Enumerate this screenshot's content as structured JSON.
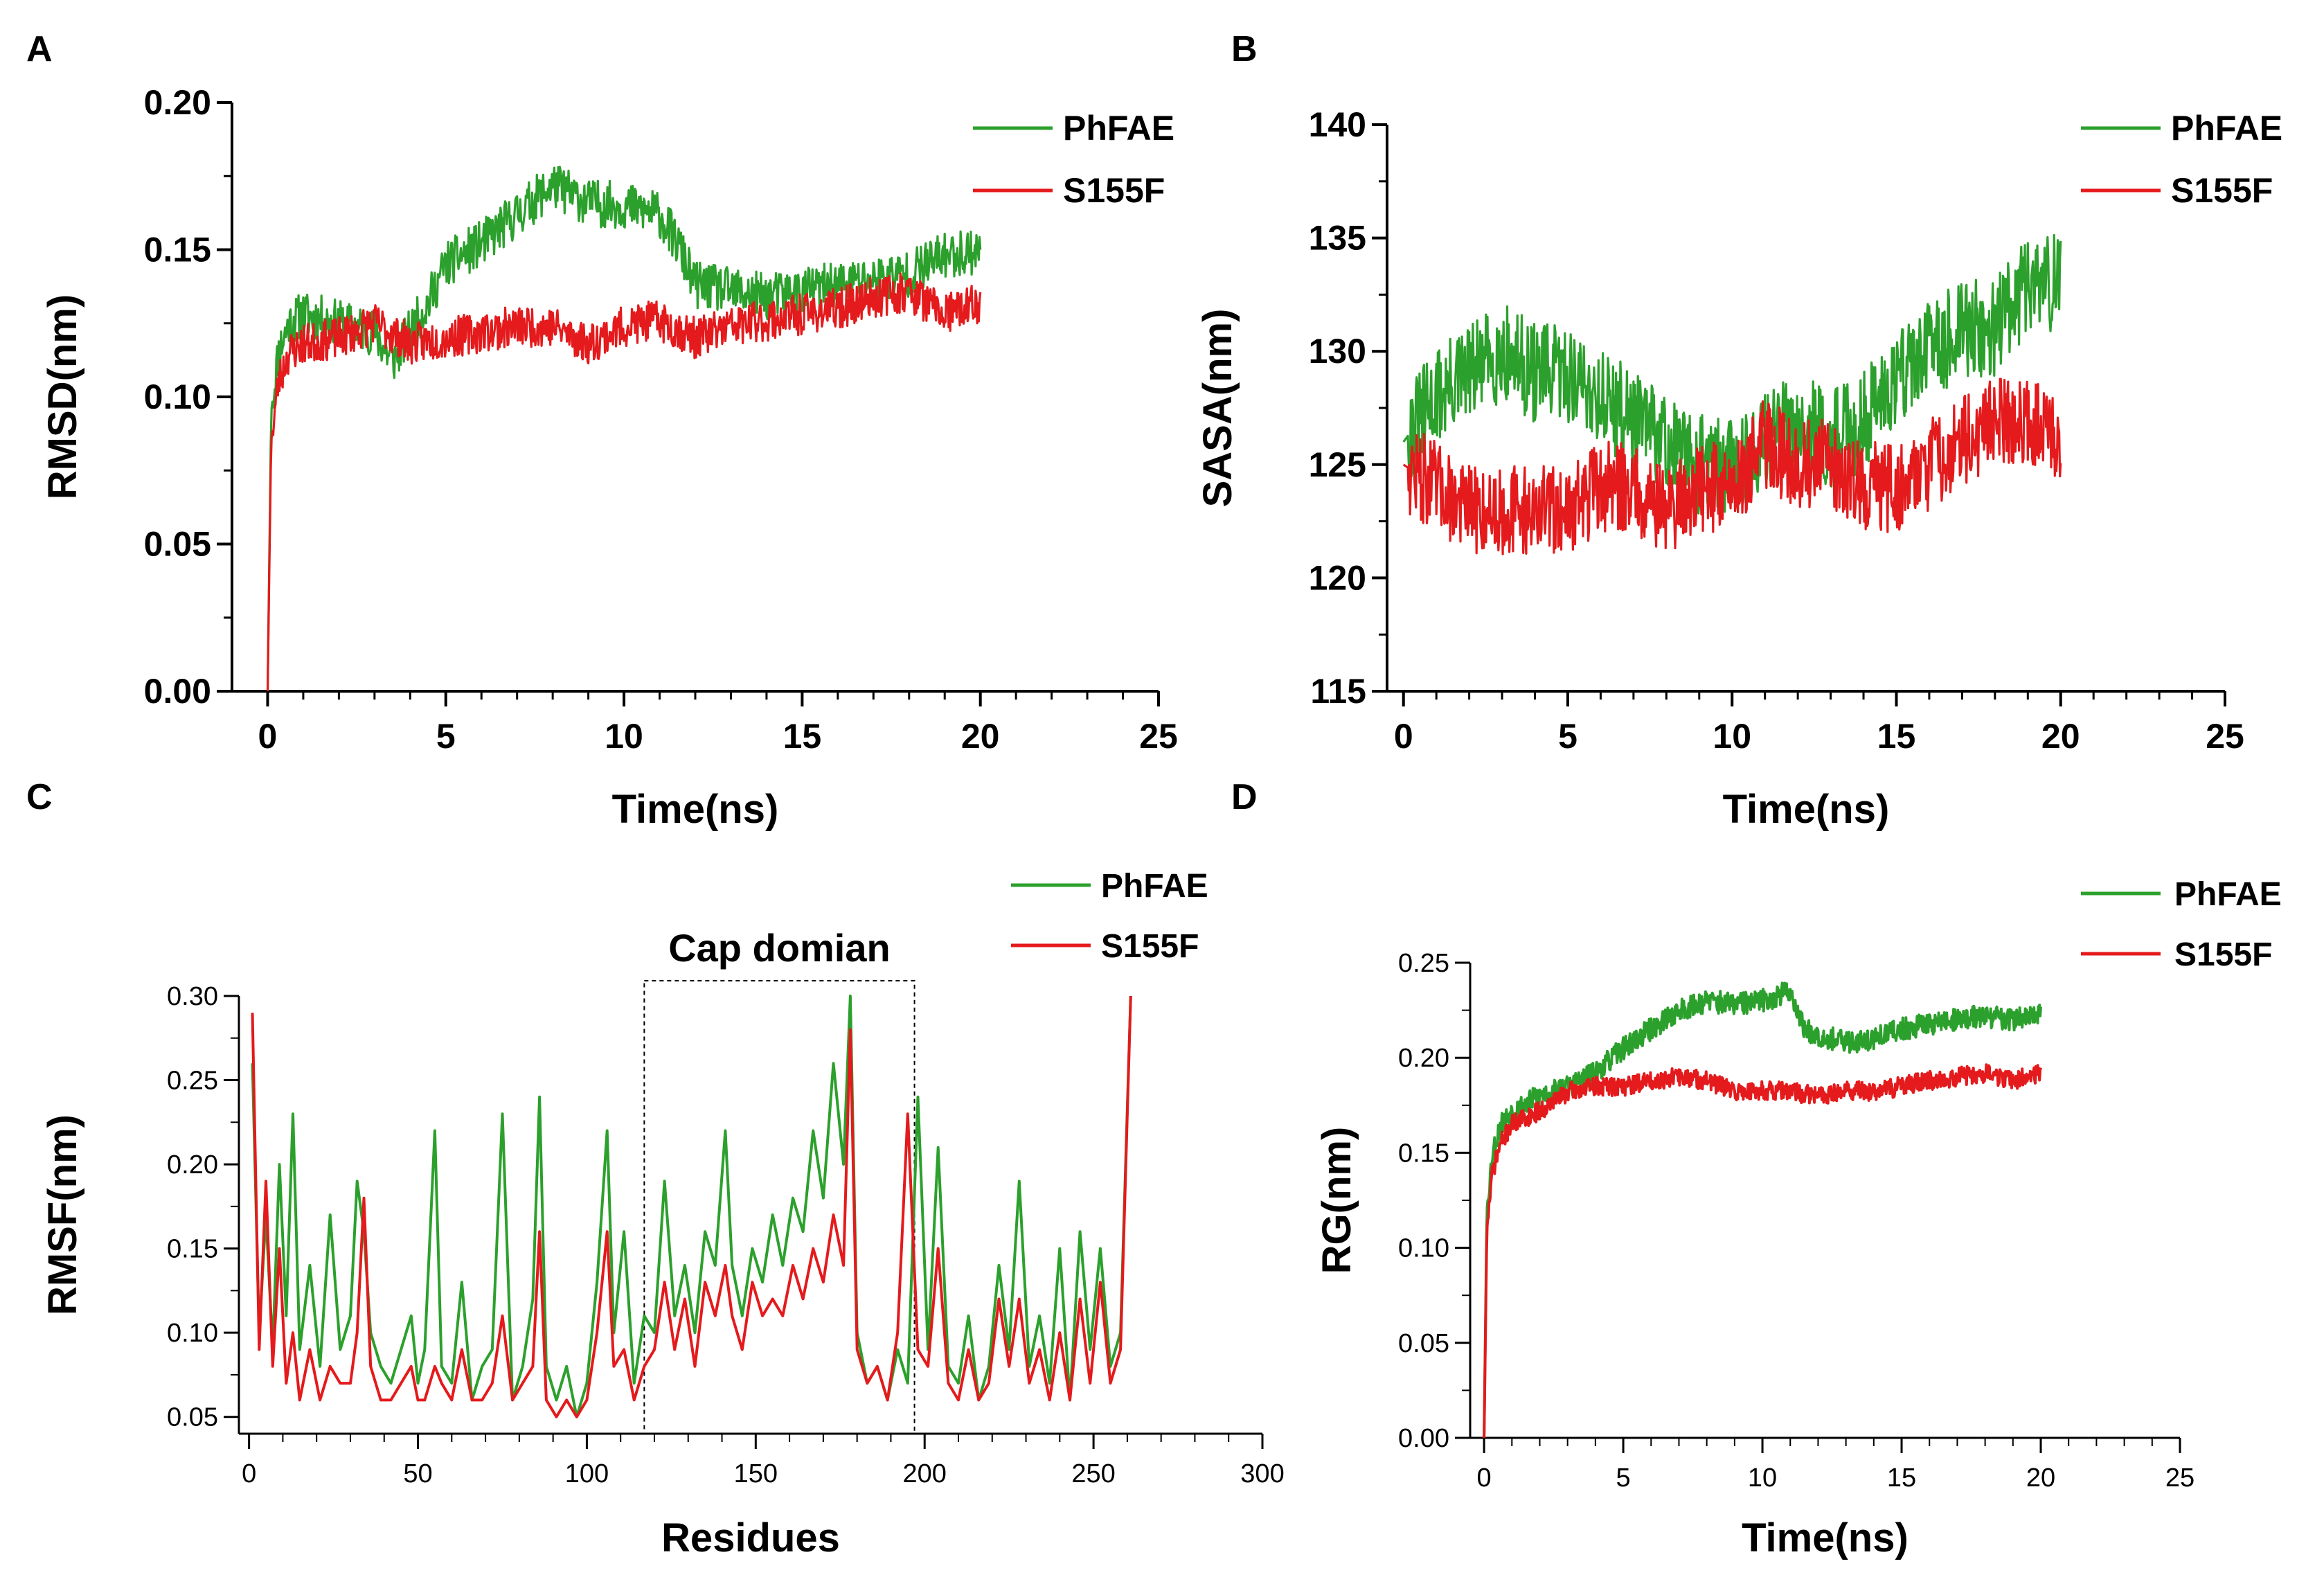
{
  "figure": {
    "colors": {
      "phfae": "#2ca02c",
      "s155f": "#e41a1c",
      "axis": "#000000"
    }
  },
  "chart_data": [
    {
      "panel": "A",
      "type": "line",
      "xlabel": "Time(ns)",
      "ylabel": "RMSD(nm)",
      "xlim": [
        -1,
        25
      ],
      "ylim": [
        0,
        0.2
      ],
      "xticks": [
        0,
        5,
        10,
        15,
        20,
        25
      ],
      "xtick_labels": [
        "0",
        "5",
        "10",
        "15",
        "20",
        "25"
      ],
      "yticks": [
        0,
        0.05,
        0.1,
        0.15,
        0.2
      ],
      "ytick_labels": [
        "0.00",
        "0.05",
        "0.10",
        "0.15",
        "0.20"
      ],
      "legend": [
        "PhFAE",
        "S155F"
      ],
      "legend_position": "top-right",
      "series": [
        {
          "name": "PhFAE",
          "color": "#2ca02c",
          "noise": 0.008,
          "seed": 11,
          "x": [
            0,
            0.1,
            0.3,
            0.6,
            1,
            2,
            3,
            3.5,
            4.5,
            5,
            6,
            7,
            8,
            9,
            10,
            11,
            11.5,
            12,
            13,
            14,
            15,
            16,
            17,
            18,
            19,
            20
          ],
          "values": [
            0,
            0.095,
            0.115,
            0.125,
            0.128,
            0.125,
            0.122,
            0.112,
            0.132,
            0.145,
            0.152,
            0.162,
            0.172,
            0.166,
            0.165,
            0.162,
            0.152,
            0.138,
            0.136,
            0.134,
            0.136,
            0.138,
            0.14,
            0.142,
            0.148,
            0.15
          ]
        },
        {
          "name": "S155F",
          "color": "#e41a1c",
          "noise": 0.007,
          "seed": 23,
          "x": [
            0,
            0.1,
            0.3,
            0.6,
            1,
            2,
            3,
            4,
            5,
            6,
            7,
            8,
            9,
            10,
            11,
            12,
            13,
            14,
            15,
            16,
            17,
            18,
            19,
            20
          ],
          "values": [
            0,
            0.085,
            0.105,
            0.115,
            0.118,
            0.12,
            0.125,
            0.118,
            0.12,
            0.122,
            0.124,
            0.124,
            0.118,
            0.124,
            0.126,
            0.12,
            0.124,
            0.126,
            0.128,
            0.13,
            0.134,
            0.136,
            0.128,
            0.132
          ]
        }
      ]
    },
    {
      "panel": "B",
      "type": "line",
      "xlabel": "Time(ns)",
      "ylabel": "SASA(nm)",
      "xlim": [
        -0.5,
        25
      ],
      "ylim": [
        115,
        140
      ],
      "xticks": [
        0,
        5,
        10,
        15,
        20,
        25
      ],
      "xtick_labels": [
        "0",
        "5",
        "10",
        "15",
        "20",
        "25"
      ],
      "yticks": [
        115,
        120,
        125,
        130,
        135,
        140
      ],
      "ytick_labels": [
        "115",
        "120",
        "125",
        "130",
        "135",
        "140"
      ],
      "legend": [
        "PhFAE",
        "S155F"
      ],
      "legend_position": "top-right",
      "series": [
        {
          "name": "PhFAE",
          "color": "#2ca02c",
          "noise": 2.2,
          "seed": 31,
          "x": [
            0,
            1,
            2,
            3,
            4,
            5,
            6,
            7,
            8,
            9,
            10,
            11,
            12,
            13,
            14,
            15,
            16,
            17,
            18,
            19,
            20
          ],
          "values": [
            126,
            128,
            129,
            130,
            129,
            129,
            128,
            127,
            126,
            125,
            125,
            126,
            127,
            126,
            127,
            129,
            130,
            131,
            131,
            133,
            133
          ]
        },
        {
          "name": "S155F",
          "color": "#e41a1c",
          "noise": 2.0,
          "seed": 47,
          "x": [
            0,
            1,
            2,
            3,
            4,
            5,
            6,
            7,
            8,
            9,
            10,
            11,
            12,
            13,
            14,
            15,
            16,
            17,
            18,
            19,
            20
          ],
          "values": [
            125,
            124,
            123,
            123,
            123,
            123,
            124,
            124,
            123,
            124,
            124,
            126,
            125,
            125,
            124,
            124,
            125,
            126,
            127,
            127,
            126
          ]
        }
      ]
    },
    {
      "panel": "C",
      "type": "line",
      "xlabel": "Residues",
      "ylabel": "RMSF(nm)",
      "xlim": [
        -3,
        300
      ],
      "ylim": [
        0.04,
        0.3
      ],
      "xticks": [
        0,
        50,
        100,
        150,
        200,
        250,
        300
      ],
      "xtick_labels": [
        "0",
        "50",
        "100",
        "150",
        "200",
        "250",
        "300"
      ],
      "yticks": [
        0.05,
        0.1,
        0.15,
        0.2,
        0.25,
        0.3
      ],
      "ytick_labels": [
        "0.05",
        "0.10",
        "0.15",
        "0.20",
        "0.25",
        "0.30"
      ],
      "annotation": {
        "text": "Cap domian",
        "x_range": [
          117,
          197
        ],
        "y_range": [
          0.04,
          0.3
        ]
      },
      "legend": [
        "PhFAE",
        "S155F"
      ],
      "legend_position": "top-right",
      "series": [
        {
          "name": "PhFAE",
          "color": "#2ca02c",
          "x": [
            1,
            3,
            5,
            7,
            9,
            11,
            13,
            15,
            18,
            21,
            24,
            27,
            30,
            32,
            34,
            36,
            39,
            42,
            45,
            48,
            50,
            52,
            55,
            57,
            60,
            63,
            66,
            69,
            72,
            75,
            78,
            81,
            84,
            86,
            88,
            91,
            94,
            97,
            100,
            103,
            106,
            108,
            111,
            114,
            117,
            120,
            123,
            126,
            129,
            132,
            135,
            138,
            141,
            143,
            146,
            149,
            152,
            155,
            158,
            161,
            164,
            167,
            170,
            173,
            176,
            178,
            180,
            183,
            186,
            189,
            192,
            195,
            198,
            201,
            204,
            207,
            210,
            213,
            216,
            219,
            222,
            225,
            228,
            231,
            234,
            237,
            240,
            243,
            246,
            249,
            252,
            255,
            258,
            261
          ],
          "values": [
            0.26,
            0.1,
            0.17,
            0.09,
            0.2,
            0.11,
            0.23,
            0.09,
            0.14,
            0.08,
            0.17,
            0.09,
            0.11,
            0.19,
            0.16,
            0.1,
            0.08,
            0.07,
            0.09,
            0.11,
            0.07,
            0.09,
            0.22,
            0.08,
            0.07,
            0.13,
            0.06,
            0.08,
            0.09,
            0.23,
            0.06,
            0.08,
            0.12,
            0.24,
            0.08,
            0.06,
            0.08,
            0.05,
            0.07,
            0.13,
            0.22,
            0.1,
            0.16,
            0.07,
            0.11,
            0.1,
            0.19,
            0.11,
            0.14,
            0.1,
            0.16,
            0.14,
            0.22,
            0.14,
            0.11,
            0.15,
            0.13,
            0.17,
            0.14,
            0.18,
            0.16,
            0.22,
            0.18,
            0.26,
            0.2,
            0.3,
            0.1,
            0.07,
            0.08,
            0.06,
            0.09,
            0.07,
            0.24,
            0.09,
            0.21,
            0.08,
            0.07,
            0.11,
            0.06,
            0.08,
            0.14,
            0.09,
            0.19,
            0.08,
            0.11,
            0.07,
            0.15,
            0.06,
            0.16,
            0.09,
            0.15,
            0.08,
            0.1,
            0.3
          ]
        },
        {
          "name": "S155F",
          "color": "#e41a1c",
          "x": [
            1,
            3,
            5,
            7,
            9,
            11,
            13,
            15,
            18,
            21,
            24,
            27,
            30,
            32,
            34,
            36,
            39,
            42,
            45,
            48,
            50,
            52,
            55,
            57,
            60,
            63,
            66,
            69,
            72,
            75,
            78,
            81,
            84,
            86,
            88,
            91,
            94,
            97,
            100,
            103,
            106,
            108,
            111,
            114,
            117,
            120,
            123,
            126,
            129,
            132,
            135,
            138,
            141,
            143,
            146,
            149,
            152,
            155,
            158,
            161,
            164,
            167,
            170,
            173,
            176,
            178,
            180,
            183,
            186,
            189,
            192,
            195,
            198,
            201,
            204,
            207,
            210,
            213,
            216,
            219,
            222,
            225,
            228,
            231,
            234,
            237,
            240,
            243,
            246,
            249,
            252,
            255,
            258,
            261
          ],
          "values": [
            0.29,
            0.09,
            0.19,
            0.08,
            0.15,
            0.07,
            0.1,
            0.06,
            0.09,
            0.06,
            0.08,
            0.07,
            0.07,
            0.1,
            0.18,
            0.08,
            0.06,
            0.06,
            0.07,
            0.08,
            0.06,
            0.06,
            0.08,
            0.07,
            0.06,
            0.09,
            0.06,
            0.06,
            0.07,
            0.11,
            0.06,
            0.07,
            0.08,
            0.16,
            0.06,
            0.05,
            0.06,
            0.05,
            0.06,
            0.1,
            0.16,
            0.08,
            0.09,
            0.06,
            0.08,
            0.09,
            0.13,
            0.09,
            0.12,
            0.08,
            0.13,
            0.11,
            0.14,
            0.11,
            0.09,
            0.13,
            0.11,
            0.12,
            0.11,
            0.14,
            0.12,
            0.15,
            0.13,
            0.17,
            0.14,
            0.28,
            0.09,
            0.07,
            0.08,
            0.06,
            0.1,
            0.23,
            0.09,
            0.08,
            0.15,
            0.07,
            0.06,
            0.09,
            0.06,
            0.07,
            0.12,
            0.08,
            0.12,
            0.07,
            0.09,
            0.06,
            0.1,
            0.06,
            0.12,
            0.07,
            0.13,
            0.07,
            0.09,
            0.3
          ]
        }
      ]
    },
    {
      "panel": "D",
      "type": "line",
      "xlabel": "Time(ns)",
      "ylabel": "RG(nm)",
      "xlim": [
        -0.5,
        25
      ],
      "ylim": [
        0,
        0.25
      ],
      "xticks": [
        0,
        5,
        10,
        15,
        20,
        25
      ],
      "xtick_labels": [
        "0",
        "5",
        "10",
        "15",
        "20",
        "25"
      ],
      "yticks": [
        0,
        0.05,
        0.1,
        0.15,
        0.2,
        0.25
      ],
      "ytick_labels": [
        "0.00",
        "0.05",
        "0.10",
        "0.15",
        "0.20",
        "0.25"
      ],
      "legend": [
        "PhFAE",
        "S155F"
      ],
      "legend_position": "top-right",
      "series": [
        {
          "name": "PhFAE",
          "color": "#2ca02c",
          "noise": 0.006,
          "seed": 53,
          "x": [
            0,
            0.1,
            0.3,
            0.6,
            1,
            2,
            3,
            4,
            5,
            6,
            7,
            8,
            9,
            10,
            11,
            11.5,
            12,
            13,
            14,
            15,
            16,
            17,
            18,
            19,
            20
          ],
          "values": [
            0,
            0.12,
            0.15,
            0.165,
            0.172,
            0.18,
            0.185,
            0.192,
            0.205,
            0.215,
            0.225,
            0.23,
            0.228,
            0.23,
            0.235,
            0.215,
            0.212,
            0.208,
            0.21,
            0.215,
            0.218,
            0.22,
            0.222,
            0.22,
            0.222
          ]
        },
        {
          "name": "S155F",
          "color": "#e41a1c",
          "noise": 0.005,
          "seed": 71,
          "x": [
            0,
            0.1,
            0.3,
            0.6,
            1,
            2,
            3,
            4,
            5,
            6,
            7,
            8,
            9,
            10,
            11,
            12,
            13,
            14,
            15,
            16,
            17,
            18,
            19,
            20
          ],
          "values": [
            0,
            0.11,
            0.14,
            0.155,
            0.165,
            0.172,
            0.182,
            0.185,
            0.185,
            0.188,
            0.19,
            0.188,
            0.182,
            0.183,
            0.182,
            0.18,
            0.183,
            0.182,
            0.185,
            0.188,
            0.19,
            0.192,
            0.188,
            0.192
          ]
        }
      ]
    }
  ]
}
